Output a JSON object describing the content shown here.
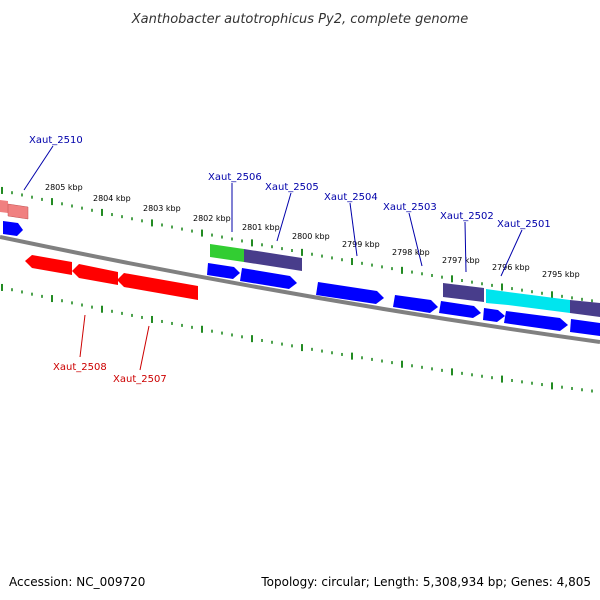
{
  "header": {
    "title": "Xanthobacter autotrophicus Py2, complete genome"
  },
  "footer": {
    "accession": "Accession: NC_009720",
    "summary": "Topology: circular; Length: 5,308,934 bp; Genes: 4,805"
  },
  "scale": {
    "ticks": [
      "2805 kbp",
      "2804 kbp",
      "2803 kbp",
      "2802 kbp",
      "2801 kbp",
      "2800 kbp",
      "2799 kbp",
      "2798 kbp",
      "2797 kbp",
      "2796 kbp",
      "2795 kbp"
    ]
  },
  "gene_labels": {
    "forward": [
      "Xaut_2510",
      "Xaut_2506",
      "Xaut_2505",
      "Xaut_2504",
      "Xaut_2503",
      "Xaut_2502",
      "Xaut_2501"
    ],
    "reverse": [
      "Xaut_2508",
      "Xaut_2507"
    ]
  },
  "colors": {
    "backbone": "#808080",
    "tick": "#228b22",
    "cds": "#0000ff",
    "reverse_gene": "#ff0000",
    "rna": "#32cd32",
    "operon": "#483d8b",
    "highlight": "#00ffff",
    "pseudogene": "#f08080",
    "forward_label": "#0000aa",
    "reverse_label": "#cc0000"
  }
}
